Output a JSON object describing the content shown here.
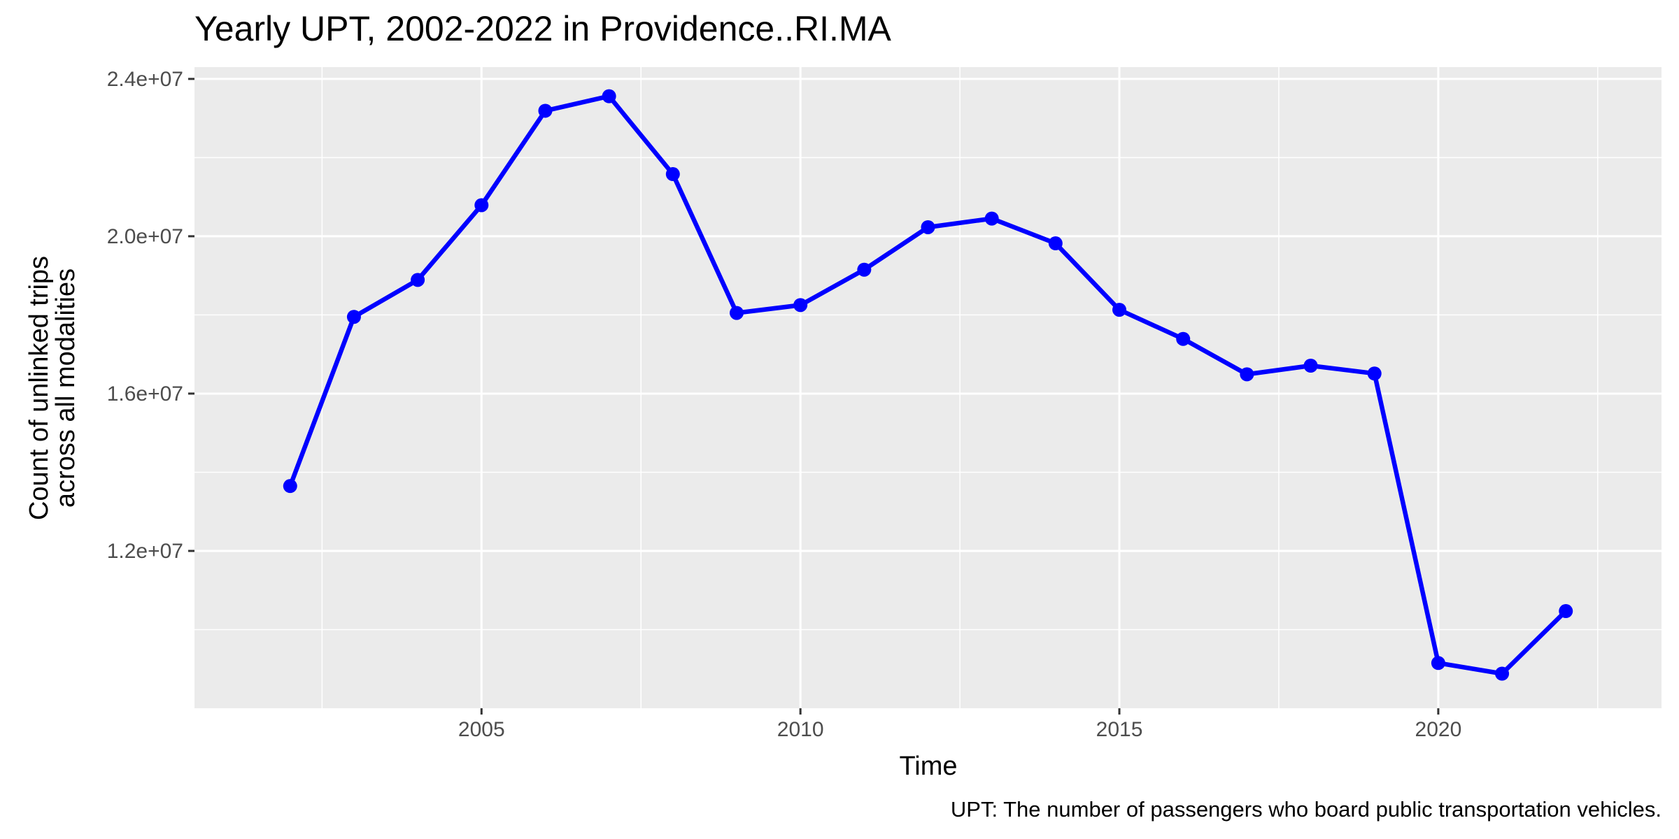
{
  "chart_data": {
    "type": "line",
    "title": "Yearly UPT, 2002-2022 in Providence..RI.MA",
    "xlabel": "Time",
    "ylabel_lines": [
      "Count of unlinked trips",
      "across all modalities"
    ],
    "caption": "UPT: The number of passengers who board public transportation vehicles.",
    "x_ticks": [
      2005,
      2010,
      2015,
      2020
    ],
    "x_tick_labels": [
      "2005",
      "2010",
      "2015",
      "2020"
    ],
    "y_ticks": [
      12000000,
      16000000,
      20000000,
      24000000
    ],
    "y_tick_labels": [
      "1.2e+07",
      "1.6e+07",
      "2.0e+07",
      "2.4e+07"
    ],
    "xlim": [
      2000.5,
      2023.5
    ],
    "ylim": [
      8000000,
      24300000
    ],
    "grid": true,
    "series": [
      {
        "color": "#0000ff",
        "x": [
          2002,
          2003,
          2004,
          2005,
          2006,
          2007,
          2008,
          2009,
          2010,
          2011,
          2012,
          2013,
          2014,
          2015,
          2016,
          2017,
          2018,
          2019,
          2020,
          2021,
          2022
        ],
        "y": [
          13650000,
          17950000,
          18890000,
          20790000,
          23190000,
          23560000,
          21580000,
          18050000,
          18250000,
          19150000,
          20230000,
          20450000,
          19820000,
          18130000,
          17390000,
          16490000,
          16710000,
          16510000,
          9150000,
          8880000,
          10470000
        ]
      }
    ]
  }
}
